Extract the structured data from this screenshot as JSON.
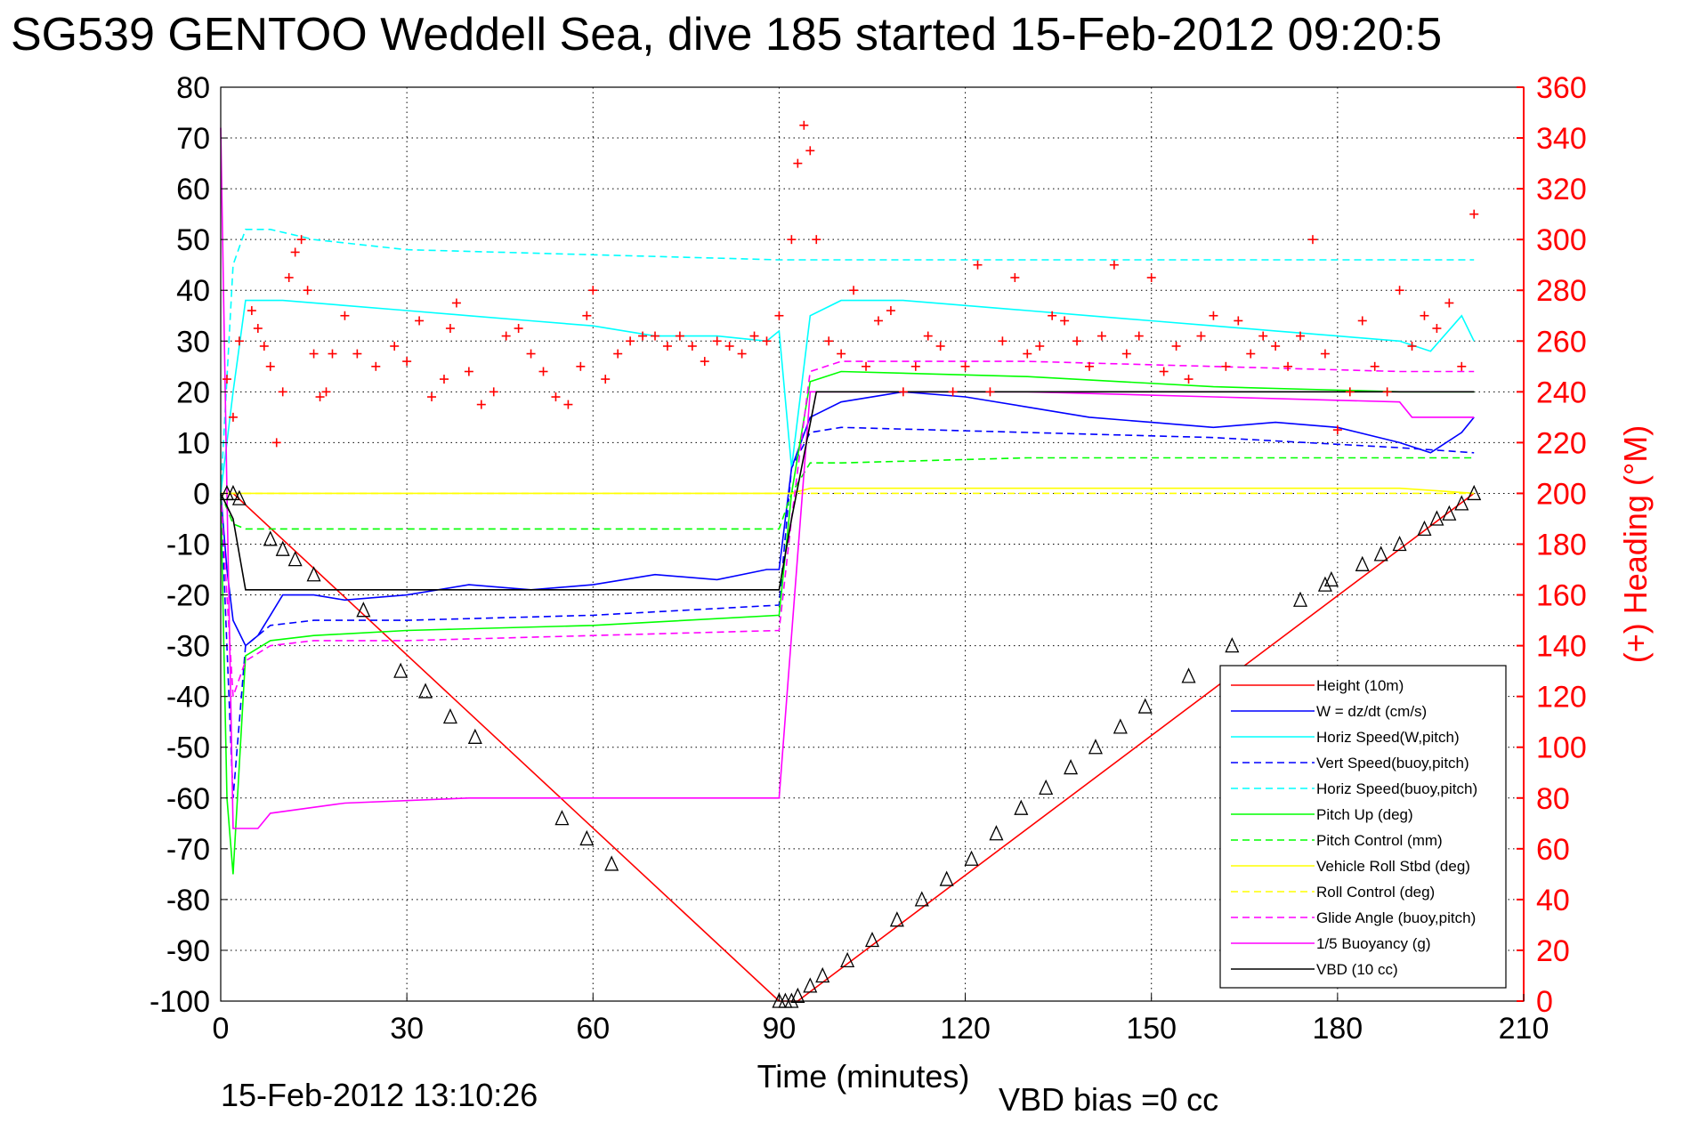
{
  "chart_data": {
    "type": "line",
    "title": "SG539 GENTOO Weddell Sea, dive 185 started 15-Feb-2012 09:20:5",
    "xlabel": "Time (minutes)",
    "ylabel": "",
    "y2label": "(+) Heading (°M)",
    "xlim": [
      0,
      210
    ],
    "ylim": [
      -100,
      80
    ],
    "y2lim": [
      0,
      360
    ],
    "grid": true,
    "legend_position": "bottom-right",
    "x_ticks": [
      "0",
      "30",
      "60",
      "90",
      "120",
      "150",
      "180",
      "210"
    ],
    "y_ticks": [
      "80",
      "70",
      "60",
      "50",
      "40",
      "30",
      "20",
      "10",
      "0",
      "-10",
      "-20",
      "-30",
      "-40",
      "-50",
      "-60",
      "-70",
      "-80",
      "-90",
      "-100"
    ],
    "y2_ticks": [
      "360",
      "340",
      "320",
      "300",
      "280",
      "260",
      "240",
      "220",
      "200",
      "180",
      "160",
      "140",
      "120",
      "100",
      "80",
      "60",
      "40",
      "20",
      "0"
    ],
    "series": [
      {
        "name": "Height (10m)",
        "color": "#ff0000",
        "style": "solid",
        "x": [
          0,
          2,
          90,
          93,
          202
        ],
        "y": [
          0,
          0,
          -100,
          -100,
          0
        ]
      },
      {
        "name": "W = dz/dt (cm/s)",
        "color": "#0000ff",
        "style": "solid",
        "x": [
          0,
          1,
          2,
          4,
          6,
          8,
          10,
          15,
          20,
          30,
          40,
          50,
          60,
          70,
          80,
          88,
          90,
          92,
          95,
          100,
          110,
          120,
          130,
          140,
          150,
          160,
          170,
          180,
          190,
          195,
          200,
          202
        ],
        "y": [
          0,
          -15,
          -25,
          -30,
          -28,
          -24,
          -20,
          -20,
          -21,
          -20,
          -18,
          -19,
          -18,
          -16,
          -17,
          -15,
          -15,
          5,
          15,
          18,
          20,
          19,
          17,
          15,
          14,
          13,
          14,
          13,
          10,
          8,
          12,
          15
        ]
      },
      {
        "name": "Horiz Speed(W,pitch)",
        "color": "#00ffff",
        "style": "solid",
        "x": [
          0,
          2,
          4,
          10,
          20,
          30,
          40,
          50,
          60,
          70,
          80,
          88,
          90,
          92,
          95,
          100,
          110,
          120,
          130,
          140,
          150,
          160,
          170,
          180,
          190,
          195,
          200,
          202
        ],
        "y": [
          0,
          20,
          38,
          38,
          37,
          36,
          35,
          34,
          33,
          31,
          31,
          30,
          32,
          5,
          35,
          38,
          38,
          37,
          36,
          35,
          34,
          33,
          32,
          31,
          30,
          28,
          35,
          30
        ]
      },
      {
        "name": "Vert Speed(buoy,pitch)",
        "color": "#0000ff",
        "style": "dashed",
        "x": [
          0,
          2,
          4,
          8,
          15,
          30,
          60,
          90,
          92,
          95,
          100,
          130,
          160,
          190,
          202
        ],
        "y": [
          0,
          -60,
          -30,
          -26,
          -25,
          -25,
          -24,
          -22,
          5,
          12,
          13,
          12,
          11,
          9,
          8
        ]
      },
      {
        "name": "Horiz Speed(buoy,pitch)",
        "color": "#00ffff",
        "style": "dashed",
        "x": [
          0,
          2,
          4,
          8,
          15,
          30,
          60,
          90,
          202
        ],
        "y": [
          0,
          45,
          52,
          52,
          50,
          48,
          47,
          46,
          46
        ]
      },
      {
        "name": "Pitch Up (deg)",
        "color": "#00ff00",
        "style": "solid",
        "x": [
          0,
          1,
          2,
          4,
          8,
          15,
          30,
          60,
          90,
          92,
          95,
          100,
          130,
          160,
          190,
          202
        ],
        "y": [
          0,
          -60,
          -75,
          -32,
          -29,
          -28,
          -27,
          -26,
          -24,
          0,
          22,
          24,
          23,
          21,
          20,
          20
        ]
      },
      {
        "name": "Pitch Control (mm)",
        "color": "#00ff00",
        "style": "dashed",
        "x": [
          0,
          2,
          4,
          90,
          92,
          95,
          100,
          130,
          160,
          190,
          202
        ],
        "y": [
          0,
          -6,
          -7,
          -7,
          0,
          6,
          6,
          7,
          7,
          7,
          7
        ]
      },
      {
        "name": "Vehicle Roll Stbd (deg)",
        "color": "#ffff00",
        "style": "solid",
        "x": [
          0,
          4,
          30,
          60,
          90,
          92,
          95,
          130,
          160,
          190,
          202
        ],
        "y": [
          0,
          0,
          0,
          0,
          0,
          0,
          1,
          1,
          1,
          1,
          0
        ]
      },
      {
        "name": "Roll Control (deg)",
        "color": "#ffff00",
        "style": "dashed",
        "x": [
          0,
          4,
          90,
          92,
          202
        ],
        "y": [
          0,
          0,
          0,
          0,
          0
        ]
      },
      {
        "name": "Glide Angle (buoy,pitch)",
        "color": "#ff00ff",
        "style": "dashed",
        "x": [
          0,
          2,
          4,
          8,
          15,
          30,
          60,
          90,
          92,
          95,
          100,
          130,
          160,
          190,
          202
        ],
        "y": [
          0,
          -40,
          -33,
          -30,
          -29,
          -29,
          -28,
          -27,
          -5,
          24,
          26,
          26,
          25,
          24,
          24
        ]
      },
      {
        "name": "1/5 Buoyancy (g)",
        "color": "#ff00ff",
        "style": "solid",
        "x": [
          0,
          1,
          2,
          6,
          8,
          20,
          40,
          60,
          89,
          90,
          95,
          100,
          130,
          160,
          190,
          192,
          202
        ],
        "y": [
          72,
          0,
          -66,
          -66,
          -63,
          -61,
          -60,
          -60,
          -60,
          -60,
          20,
          20,
          20,
          19,
          18,
          15,
          15
        ]
      },
      {
        "name": "VBD (10 cc)",
        "color": "#000000",
        "style": "solid",
        "x": [
          0,
          2,
          4,
          90,
          92,
          96,
          202
        ],
        "y": [
          0,
          -5,
          -19,
          -19,
          -5,
          20,
          20
        ]
      }
    ],
    "heading_series": {
      "name": "(+) Heading",
      "color": "#ff0000",
      "marker": "+",
      "axis": "right",
      "x": [
        1,
        2,
        3,
        5,
        6,
        7,
        8,
        9,
        10,
        11,
        12,
        13,
        14,
        15,
        16,
        17,
        18,
        20,
        22,
        25,
        28,
        30,
        32,
        34,
        36,
        37,
        38,
        40,
        42,
        44,
        46,
        48,
        50,
        52,
        54,
        56,
        58,
        59,
        60,
        62,
        64,
        66,
        68,
        70,
        72,
        74,
        76,
        78,
        80,
        82,
        84,
        86,
        88,
        90,
        92,
        93,
        94,
        95,
        96,
        98,
        100,
        102,
        104,
        106,
        108,
        110,
        112,
        114,
        116,
        118,
        120,
        122,
        124,
        126,
        128,
        130,
        132,
        134,
        136,
        138,
        140,
        142,
        144,
        146,
        148,
        150,
        152,
        154,
        156,
        158,
        160,
        162,
        164,
        166,
        168,
        170,
        172,
        174,
        176,
        178,
        180,
        182,
        184,
        186,
        188,
        190,
        192,
        194,
        196,
        198,
        200,
        202
      ],
      "y": [
        245,
        230,
        260,
        272,
        265,
        258,
        250,
        220,
        240,
        285,
        295,
        300,
        280,
        255,
        238,
        240,
        255,
        270,
        255,
        250,
        258,
        252,
        268,
        238,
        245,
        265,
        275,
        248,
        235,
        240,
        262,
        265,
        255,
        248,
        238,
        235,
        250,
        270,
        280,
        245,
        255,
        260,
        262,
        262,
        258,
        262,
        258,
        252,
        260,
        258,
        255,
        262,
        260,
        270,
        300,
        330,
        345,
        335,
        300,
        260,
        255,
        280,
        250,
        268,
        272,
        240,
        250,
        262,
        258,
        240,
        250,
        290,
        240,
        260,
        285,
        255,
        258,
        270,
        268,
        260,
        250,
        262,
        290,
        255,
        262,
        285,
        248,
        258,
        245,
        262,
        270,
        250,
        268,
        255,
        262,
        258,
        250,
        262,
        300,
        255,
        225,
        240,
        268,
        250,
        240,
        280,
        258,
        270,
        265,
        275,
        250,
        310
      ]
    },
    "vbd_markers": {
      "x": [
        1,
        2,
        3,
        8,
        10,
        12,
        15,
        23,
        29,
        33,
        37,
        41,
        55,
        59,
        63,
        90,
        91,
        92,
        93,
        95,
        97,
        101,
        105,
        109,
        113,
        117,
        121,
        125,
        129,
        133,
        137,
        141,
        145,
        149,
        156,
        163,
        174,
        178,
        179,
        184,
        187,
        190,
        194,
        196,
        198,
        200,
        202
      ],
      "y": [
        0,
        0,
        -1,
        -9,
        -11,
        -13,
        -16,
        -23,
        -35,
        -39,
        -44,
        -48,
        -64,
        -68,
        -73,
        -100,
        -100,
        -100,
        -99,
        -97,
        -95,
        -92,
        -88,
        -84,
        -80,
        -76,
        -72,
        -67,
        -62,
        -58,
        -54,
        -50,
        -46,
        -42,
        -36,
        -30,
        -21,
        -18,
        -17,
        -14,
        -12,
        -10,
        -7,
        -5,
        -4,
        -2,
        0
      ]
    },
    "footer_left": "15-Feb-2012 13:10:26",
    "footer_right": "VBD bias =0 cc"
  }
}
